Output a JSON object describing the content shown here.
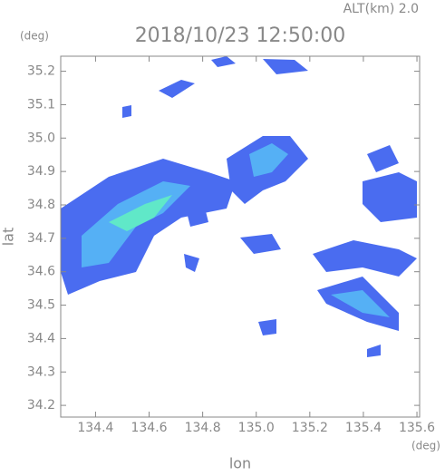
{
  "chart_data": {
    "type": "map",
    "title": "2018/10/23 12:50:00",
    "subtitle": "ALT(km) 2.0",
    "x_label": "lon",
    "y_label": "lat",
    "x_unit": "(deg)",
    "y_unit": "(deg)",
    "xlim": [
      134.27,
      135.61
    ],
    "ylim": [
      34.165,
      35.245
    ],
    "xticks": [
      134.4,
      134.6,
      134.8,
      {
        "value": 135,
        "label": "135.0"
      },
      135.2,
      135.4,
      135.6
    ],
    "yticks": [
      34.2,
      34.3,
      34.4,
      34.5,
      34.6,
      34.7,
      34.8,
      34.9,
      {
        "value": 35,
        "label": "35.0"
      },
      35.1,
      35.2
    ]
  }
}
